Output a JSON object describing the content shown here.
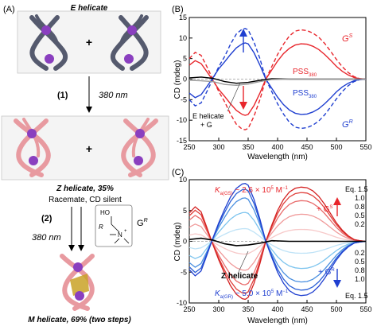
{
  "panel_a": {
    "label": "(A)",
    "e_helicate": "E helicate",
    "plus1": "+",
    "step1_label": "(1)",
    "step1_condition": "380 nm",
    "z_helicate": "Z helicate, 35%",
    "z_note": "Racemate, CD silent",
    "plus2": "+",
    "step2_label": "(2)",
    "step2_condition": "380 nm",
    "reagent": {
      "ho": "HO",
      "r": "R",
      "n": "N",
      "plus": "+",
      "name_main": "G",
      "name_sup": "R"
    },
    "m_helicate": "M helicate, 69% (two steps)",
    "colors": {
      "e_helicate_strand": "#555a6e",
      "z_helicate_strand": "#e89aa0",
      "metal": "#8a3fbf",
      "guest": "#c9a227"
    }
  },
  "chart_data": [
    {
      "panel": "(B)",
      "type": "line",
      "xlabel": "Wavelength (nm)",
      "ylabel": "CD (mdeg)",
      "xlim": [
        250,
        550
      ],
      "ylim": [
        -15,
        15
      ],
      "xticks": [
        250,
        300,
        350,
        400,
        450,
        500,
        550
      ],
      "yticks": [
        -15,
        -10,
        -5,
        0,
        5,
        10,
        15
      ],
      "grid": false,
      "annotations": {
        "gs_main": "G",
        "gs_sup": "S",
        "gr_main": "G",
        "gr_sup": "R",
        "pss_top_main": "PSS",
        "pss_top_sub": "380",
        "pss_bot_main": "PSS",
        "pss_bot_sub": "380",
        "e_helicate_line1": "E helicate",
        "e_helicate_line2": "+ G"
      },
      "series": [
        {
          "color": "#e8262c",
          "style": "dashed",
          "x": [
            250,
            260,
            270,
            280,
            290,
            300,
            310,
            320,
            330,
            340,
            345,
            350,
            360,
            370,
            380,
            390,
            400,
            410,
            420,
            430,
            440,
            450,
            460,
            470,
            480,
            490,
            500,
            510,
            520,
            530,
            540,
            550
          ],
          "y": [
            5,
            6.5,
            5.8,
            3,
            0,
            -3,
            -5.5,
            -8.5,
            -11,
            -12.2,
            -12.3,
            -12,
            -9,
            -5,
            0,
            3,
            6,
            8.5,
            10.5,
            11.7,
            12,
            11.8,
            11.2,
            10.2,
            8.7,
            6.8,
            4.8,
            3,
            1.6,
            0.6,
            0.1,
            0
          ]
        },
        {
          "color": "#e8262c",
          "style": "solid",
          "x": [
            250,
            260,
            270,
            280,
            290,
            300,
            310,
            320,
            330,
            340,
            345,
            350,
            360,
            370,
            380,
            390,
            400,
            410,
            420,
            430,
            440,
            450,
            460,
            470,
            480,
            490,
            500,
            510,
            520,
            530,
            540,
            550
          ],
          "y": [
            3.4,
            4.5,
            3.8,
            1.8,
            -0.3,
            -2.5,
            -4.2,
            -6,
            -7.6,
            -8.6,
            -8.8,
            -8.6,
            -6.4,
            -3.4,
            0,
            2.2,
            4.4,
            6.2,
            7.5,
            8.3,
            8.6,
            8.5,
            8,
            7.2,
            6,
            4.6,
            3.1,
            1.9,
            1,
            0.4,
            0.1,
            0
          ]
        },
        {
          "color": "#1f3fd0",
          "style": "dashed",
          "x": [
            250,
            260,
            270,
            280,
            290,
            300,
            310,
            320,
            330,
            340,
            345,
            350,
            360,
            370,
            380,
            390,
            400,
            410,
            420,
            430,
            440,
            450,
            460,
            470,
            480,
            490,
            500,
            510,
            520,
            530,
            540,
            550
          ],
          "y": [
            -5,
            -6.5,
            -5.8,
            -3,
            0,
            3,
            5.5,
            8.5,
            11,
            12.2,
            12.3,
            12,
            9,
            5,
            0,
            -3,
            -6,
            -8.5,
            -10.5,
            -11.7,
            -12,
            -11.8,
            -11.2,
            -10.2,
            -8.7,
            -6.8,
            -4.8,
            -3,
            -1.6,
            -0.6,
            -0.1,
            0
          ]
        },
        {
          "color": "#1f3fd0",
          "style": "solid",
          "x": [
            250,
            260,
            270,
            280,
            290,
            300,
            310,
            320,
            330,
            340,
            345,
            350,
            360,
            370,
            380,
            390,
            400,
            410,
            420,
            430,
            440,
            450,
            460,
            470,
            480,
            490,
            500,
            510,
            520,
            530,
            540,
            550
          ],
          "y": [
            -3.4,
            -4.5,
            -3.8,
            -1.8,
            0.3,
            2.5,
            4.2,
            6,
            7.6,
            8.6,
            8.8,
            8.6,
            6.4,
            3.4,
            0,
            -2.2,
            -4.4,
            -6.2,
            -7.5,
            -8.3,
            -8.6,
            -8.5,
            -8,
            -7.2,
            -6,
            -4.6,
            -3.1,
            -1.9,
            -1,
            -0.4,
            -0.1,
            0
          ]
        },
        {
          "color": "#000000",
          "style": "solid",
          "x": [
            250,
            270,
            290,
            310,
            330,
            350,
            370,
            390,
            420,
            450,
            480,
            510,
            550
          ],
          "y": [
            0.3,
            0.5,
            0.2,
            -0.6,
            -1.0,
            -0.8,
            -0.3,
            0.1,
            0,
            0,
            0,
            0,
            0
          ]
        },
        {
          "color": "#9a9a9a",
          "style": "solid",
          "x": [
            250,
            270,
            290,
            310,
            330,
            350,
            370,
            390,
            420,
            450,
            480,
            510,
            550
          ],
          "y": [
            -0.3,
            -0.4,
            -0.6,
            -1.3,
            -1.5,
            -1.2,
            -0.6,
            -0.1,
            0,
            0,
            0,
            0,
            0
          ]
        }
      ]
    },
    {
      "panel": "(C)",
      "type": "line",
      "xlabel": "Wavelength (nm)",
      "ylabel": "CD (mdeg)",
      "xlim": [
        250,
        550
      ],
      "ylim": [
        -10,
        10
      ],
      "xticks": [
        250,
        300,
        350,
        400,
        450,
        500,
        550
      ],
      "yticks": [
        -10,
        -5,
        0,
        5,
        10
      ],
      "grid": false,
      "annotations": {
        "ka_gs_k": "K",
        "ka_gs_sub": "a(GS)",
        "ka_gs_rest": " ~ 2.6 × 10",
        "ka_gs_exp": "5",
        "ka_gs_unit": " M",
        "ka_gs_unit_exp": "−1",
        "ka_gr_k": "K",
        "ka_gr_sub": "a(GR)",
        "ka_gr_rest": " ~ 5.0 × 10",
        "ka_gr_exp": "5",
        "ka_gr_unit": " M",
        "ka_gr_unit_exp": "−1",
        "plus_gs_main": "+ G",
        "plus_gs_sup": "S",
        "plus_gr_main": "+ G",
        "plus_gr_sup": "R",
        "z_helicate": "Z helicate",
        "eq_top": "Eq. 1.5",
        "eq_bottom": "Eq. 1.5",
        "eq_values_top": [
          "1.0",
          "0.8",
          "0.5",
          "0.2"
        ],
        "eq_values_bottom": [
          "0.2",
          "0.5",
          "0.8",
          "1.0"
        ]
      },
      "equivalents": [
        0.2,
        0.5,
        0.8,
        1.0,
        1.5
      ],
      "red_colors": [
        "#f7c9c9",
        "#f09a9a",
        "#e86a6a",
        "#e0403c",
        "#d42020"
      ],
      "blue_colors": [
        "#bfe3f7",
        "#7dc4ee",
        "#4a8fe0",
        "#2a5fd6",
        "#1f3fd0"
      ],
      "black_color": "#000000",
      "gs_profile": {
        "x": [
          250,
          260,
          270,
          280,
          290,
          300,
          310,
          320,
          330,
          340,
          345,
          350,
          360,
          370,
          380,
          390,
          400,
          410,
          420,
          430,
          440,
          450,
          460,
          470,
          480,
          490,
          500,
          510,
          520,
          530,
          540,
          550
        ],
        "y": [
          4.6,
          5.6,
          4.8,
          2.2,
          -0.5,
          -3,
          -5.2,
          -7.2,
          -8.6,
          -9.3,
          -9.4,
          -9.1,
          -6.8,
          -3.6,
          0,
          2.6,
          5,
          6.8,
          8,
          8.6,
          8.8,
          8.7,
          8.2,
          7.3,
          6,
          4.5,
          3,
          1.8,
          0.9,
          0.3,
          0.1,
          0
        ]
      },
      "gs_levels": [
        0.22,
        0.5,
        0.75,
        0.9,
        1.0
      ],
      "gr_levels": [
        0.22,
        0.5,
        0.75,
        0.9,
        1.0
      ],
      "black_series": {
        "x": [
          250,
          270,
          290,
          310,
          330,
          350,
          370,
          390,
          420,
          450,
          480,
          510,
          550
        ],
        "y": [
          0.3,
          0.5,
          0.2,
          -0.4,
          -0.7,
          -0.6,
          -0.3,
          0.1,
          0,
          0,
          0,
          0,
          0
        ]
      }
    }
  ]
}
